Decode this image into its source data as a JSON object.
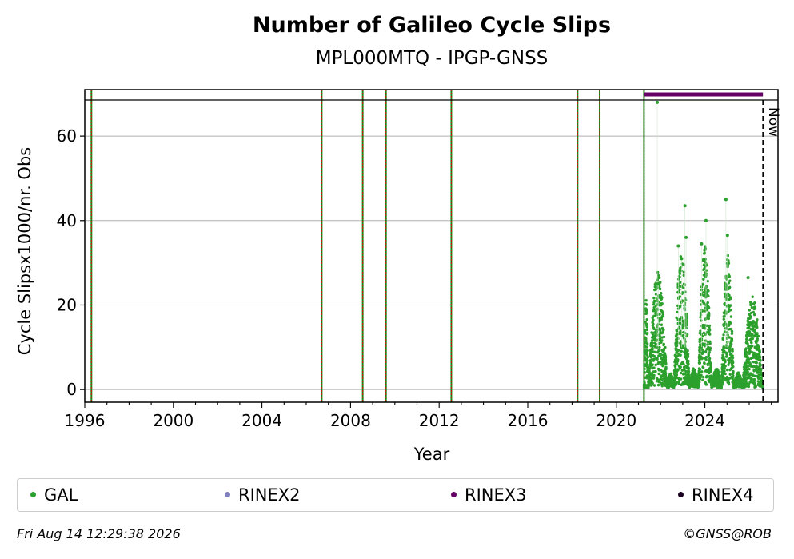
{
  "header": {
    "title": "Number of Galileo Cycle Slips",
    "subtitle": "MPL000MTQ - IPGP-GNSS"
  },
  "footer": {
    "timestamp": "Fri Aug 14 12:29:38 2026",
    "credit": "©GNSS@ROB"
  },
  "legend": {
    "items": [
      {
        "label": "GAL",
        "color": "#2ca02c"
      },
      {
        "label": "RINEX2",
        "color": "#8080c0"
      },
      {
        "label": "RINEX3",
        "color": "#660066"
      },
      {
        "label": "RINEX4",
        "color": "#1a0022"
      }
    ]
  },
  "chart_data": {
    "type": "scatter",
    "title": "Number of Galileo Cycle Slips",
    "subtitle": "MPL000MTQ - IPGP-GNSS",
    "xlabel": "Year",
    "ylabel": "Cycle Slipsx1000/nr. Obs",
    "xlim": [
      1996.0,
      2027.3
    ],
    "ylim": [
      -3,
      71
    ],
    "x_ticks": [
      1996,
      2000,
      2004,
      2008,
      2012,
      2016,
      2020,
      2024
    ],
    "y_ticks": [
      0,
      20,
      40,
      60
    ],
    "grid": "horizontal",
    "legend_position": "bottom",
    "now_label": "Now",
    "now_x": 2026.62,
    "vertical_event_lines": [
      1996.3,
      2006.7,
      2008.55,
      2009.6,
      2012.55,
      2018.25,
      2019.25,
      2021.25
    ],
    "rinex3_coverage": [
      2021.25,
      2026.62
    ],
    "series": [
      {
        "name": "GAL",
        "color": "#2ca02c",
        "seasons": [
          {
            "from": 2021.25,
            "to": 2021.45,
            "peak": 22,
            "min": 0.3
          },
          {
            "from": 2021.45,
            "to": 2022.3,
            "peak": 28,
            "min": 0.8
          },
          {
            "from": 2022.3,
            "to": 2022.6,
            "peak": 4,
            "min": 0.5
          },
          {
            "from": 2022.6,
            "to": 2023.3,
            "peak": 33,
            "min": 1
          },
          {
            "from": 2023.3,
            "to": 2023.7,
            "peak": 5,
            "min": 0.5
          },
          {
            "from": 2023.7,
            "to": 2024.3,
            "peak": 34,
            "min": 1
          },
          {
            "from": 2024.3,
            "to": 2024.75,
            "peak": 5,
            "min": 0.5
          },
          {
            "from": 2024.75,
            "to": 2025.3,
            "peak": 32,
            "min": 1
          },
          {
            "from": 2025.3,
            "to": 2025.7,
            "peak": 4,
            "min": 0.5
          },
          {
            "from": 2025.7,
            "to": 2026.6,
            "peak": 22,
            "min": 0.5
          }
        ],
        "outliers": [
          {
            "x": 2021.85,
            "y": 68
          },
          {
            "x": 2021.9,
            "y": 25
          },
          {
            "x": 2023.1,
            "y": 43.5
          },
          {
            "x": 2023.15,
            "y": 36
          },
          {
            "x": 2024.05,
            "y": 40
          },
          {
            "x": 2023.85,
            "y": 34.5
          },
          {
            "x": 2024.95,
            "y": 45
          },
          {
            "x": 2025.02,
            "y": 36.5
          },
          {
            "x": 2025.95,
            "y": 26.5
          },
          {
            "x": 2022.8,
            "y": 34
          },
          {
            "x": 2022.95,
            "y": 31
          }
        ]
      }
    ]
  }
}
